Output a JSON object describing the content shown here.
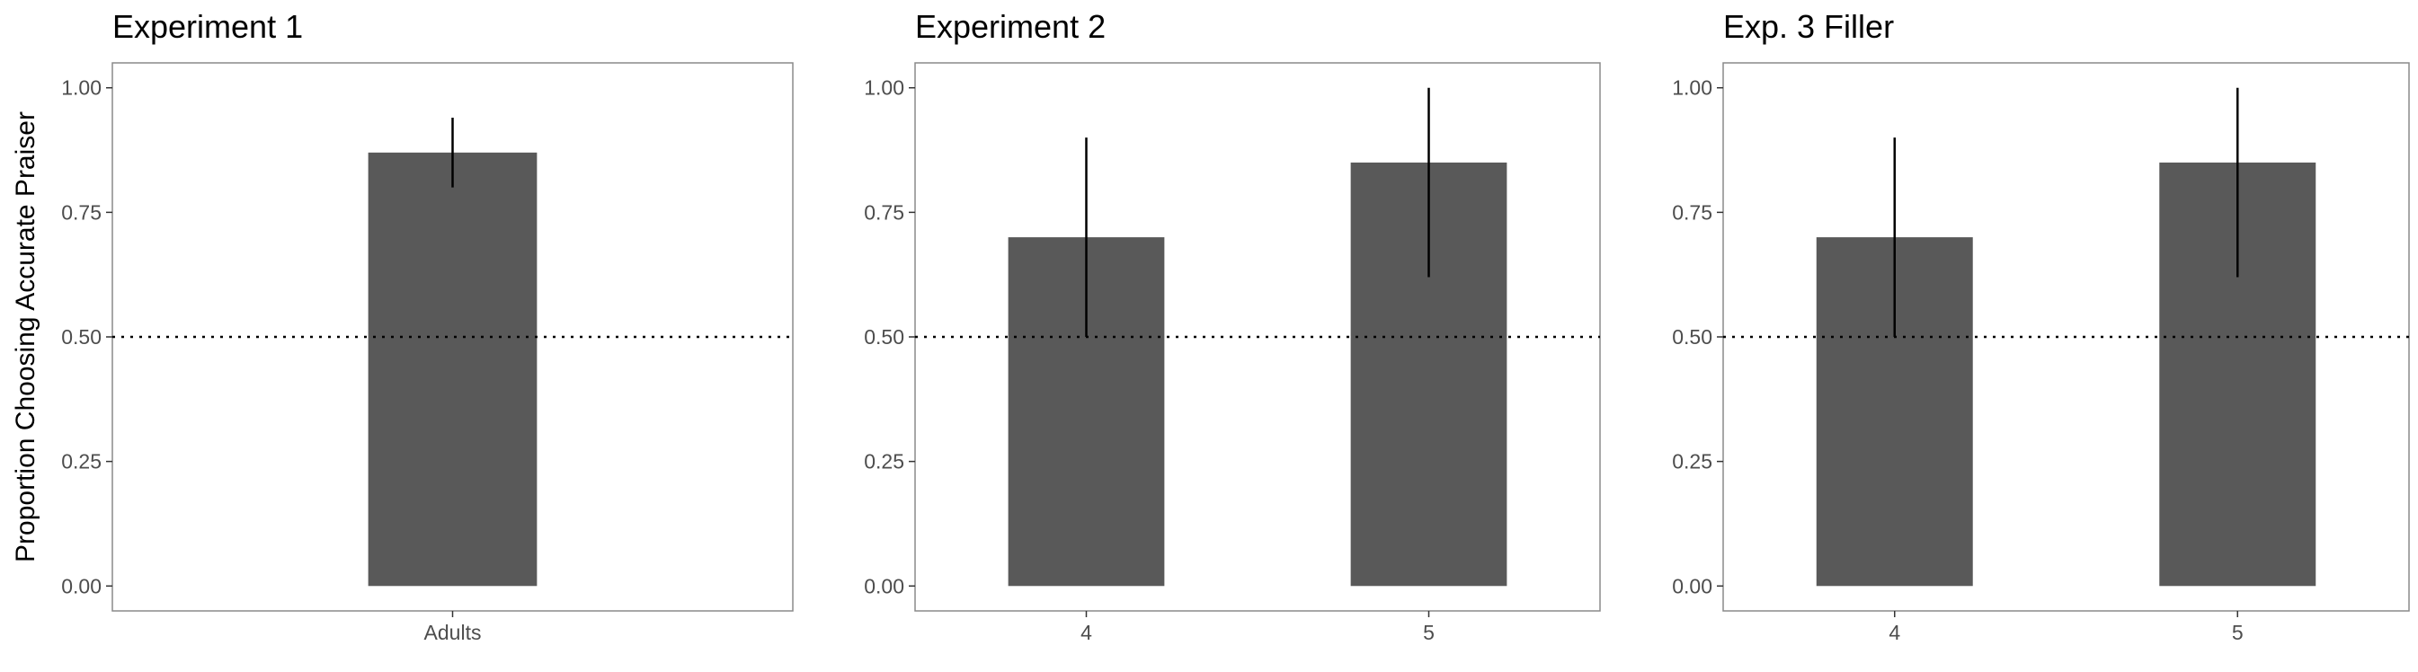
{
  "colors": {
    "bar": "#595959",
    "error_bar": "#000000",
    "reference_line": "#000000",
    "panel_border": "#8a8a8a",
    "tick_label": "#4d4d4d"
  },
  "figure": {
    "ylabel": "Proportion Choosing Accurate Praiser"
  },
  "chart_data": [
    {
      "type": "bar",
      "title": "Experiment 1",
      "categories": [
        "Adults"
      ],
      "values": [
        0.87
      ],
      "error_low": [
        0.8
      ],
      "error_high": [
        0.94
      ],
      "reference_line": 0.5,
      "ylim": [
        -0.05,
        1.05
      ],
      "yticks": [
        0.0,
        0.25,
        0.5,
        0.75,
        1.0
      ],
      "ytick_labels": [
        "0.00",
        "0.25",
        "0.50",
        "0.75",
        "1.00"
      ],
      "xlabel": "",
      "ylabel": "Proportion Choosing Accurate Praiser",
      "grid": false
    },
    {
      "type": "bar",
      "title": "Experiment 2",
      "categories": [
        "4",
        "5"
      ],
      "values": [
        0.7,
        0.85
      ],
      "error_low": [
        0.5,
        0.62
      ],
      "error_high": [
        0.9,
        1.0
      ],
      "reference_line": 0.5,
      "ylim": [
        -0.05,
        1.05
      ],
      "yticks": [
        0.0,
        0.25,
        0.5,
        0.75,
        1.0
      ],
      "ytick_labels": [
        "0.00",
        "0.25",
        "0.50",
        "0.75",
        "1.00"
      ],
      "xlabel": "",
      "ylabel": "",
      "grid": false
    },
    {
      "type": "bar",
      "title": "Exp. 3 Filler",
      "categories": [
        "4",
        "5"
      ],
      "values": [
        0.7,
        0.85
      ],
      "error_low": [
        0.5,
        0.62
      ],
      "error_high": [
        0.9,
        1.0
      ],
      "reference_line": 0.5,
      "ylim": [
        -0.05,
        1.05
      ],
      "yticks": [
        0.0,
        0.25,
        0.5,
        0.75,
        1.0
      ],
      "ytick_labels": [
        "0.00",
        "0.25",
        "0.50",
        "0.75",
        "1.00"
      ],
      "xlabel": "",
      "ylabel": "",
      "grid": false
    }
  ]
}
